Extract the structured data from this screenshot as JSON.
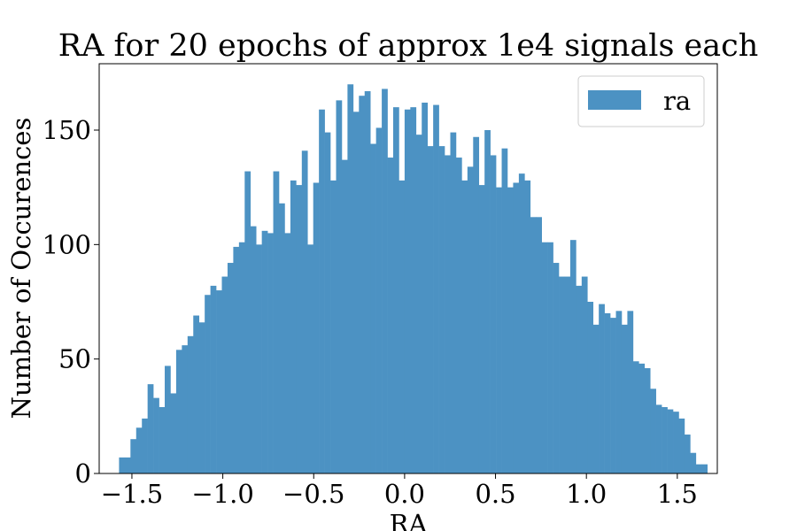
{
  "chart_data": {
    "type": "bar",
    "title": "RA for 20 epochs of approx 1e4 signals each",
    "xlabel": "RA",
    "ylabel": "Number of Occurences",
    "xlim": [
      -1.68,
      1.72
    ],
    "ylim": [
      0,
      179
    ],
    "x_ticks": [
      -1.5,
      -1.0,
      -0.5,
      0.0,
      0.5,
      1.0,
      1.5
    ],
    "x_tick_labels": [
      "−1.5",
      "−1.0",
      "−0.5",
      "0.0",
      "0.5",
      "1.0",
      "1.5"
    ],
    "y_ticks": [
      0,
      50,
      100,
      150
    ],
    "y_tick_labels": [
      "0",
      "50",
      "100",
      "150"
    ],
    "grid": false,
    "legend": {
      "position": "top-right",
      "entries": [
        "ra"
      ]
    },
    "bin_start": -1.5708,
    "bin_width": 0.031416,
    "series": [
      {
        "name": "ra",
        "color": "#4c92c3",
        "values": [
          7,
          7,
          15,
          20,
          24,
          39,
          33,
          29,
          47,
          35,
          54,
          56,
          60,
          69,
          66,
          78,
          82,
          80,
          86,
          92,
          99,
          101,
          132,
          108,
          100,
          106,
          105,
          132,
          118,
          105,
          128,
          126,
          141,
          100,
          127,
          159,
          149,
          128,
          163,
          137,
          170,
          158,
          165,
          167,
          144,
          151,
          168,
          138,
          160,
          128,
          159,
          160,
          148,
          162,
          143,
          161,
          143,
          139,
          149,
          138,
          128,
          134,
          147,
          126,
          150,
          139,
          125,
          142,
          125,
          127,
          131,
          128,
          112,
          112,
          101,
          101,
          92,
          86,
          86,
          102,
          82,
          86,
          75,
          65,
          74,
          70,
          68,
          71,
          65,
          71,
          49,
          48,
          46,
          37,
          30,
          29,
          28,
          27,
          24,
          17,
          9,
          4,
          4
        ]
      }
    ]
  }
}
